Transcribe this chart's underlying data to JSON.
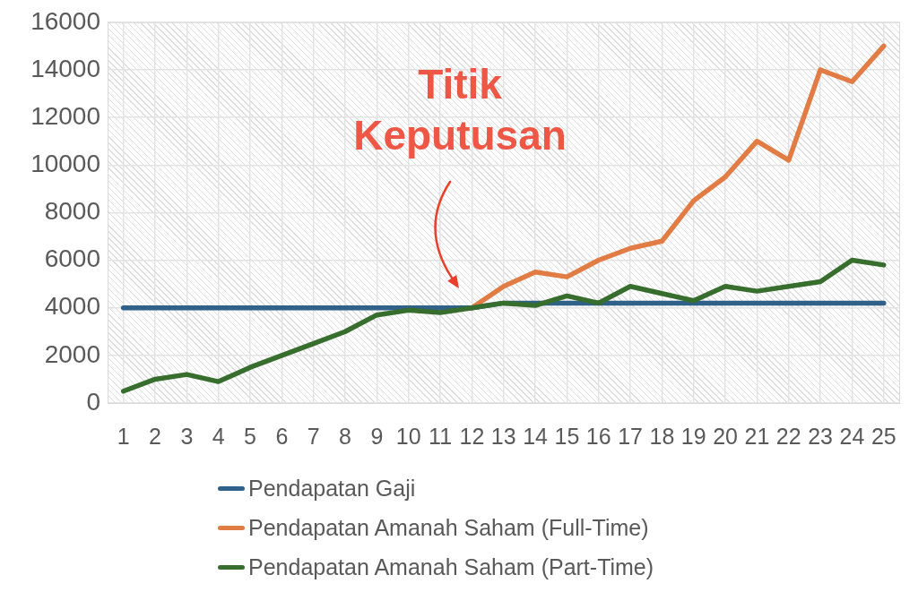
{
  "chart_data": {
    "type": "line",
    "x": [
      1,
      2,
      3,
      4,
      5,
      6,
      7,
      8,
      9,
      10,
      11,
      12,
      13,
      14,
      15,
      16,
      17,
      18,
      19,
      20,
      21,
      22,
      23,
      24,
      25
    ],
    "series": [
      {
        "name": "Pendapatan Gaji",
        "color": "#2f6189",
        "values": [
          4000,
          4000,
          4000,
          4000,
          4000,
          4000,
          4000,
          4000,
          4000,
          4000,
          4000,
          4000,
          4200,
          4200,
          4200,
          4200,
          4200,
          4200,
          4200,
          4200,
          4200,
          4200,
          4200,
          4200,
          4200
        ]
      },
      {
        "name": "Pendapatan Amanah Saham (Full-Time)",
        "color": "#e27c45",
        "values": [
          null,
          null,
          null,
          null,
          null,
          null,
          null,
          null,
          null,
          null,
          null,
          4000,
          4900,
          5500,
          5300,
          6000,
          6500,
          6800,
          8500,
          9500,
          11000,
          10200,
          14000,
          13500,
          15000
        ]
      },
      {
        "name": "Pendapatan Amanah Saham (Part-Time)",
        "color": "#376d2d",
        "values": [
          500,
          1000,
          1200,
          900,
          1500,
          2000,
          2500,
          3000,
          3700,
          3900,
          3800,
          4000,
          4200,
          4100,
          4500,
          4200,
          4900,
          4600,
          4300,
          4900,
          4700,
          4900,
          5100,
          6000,
          5800
        ]
      }
    ],
    "xlim": [
      0.5,
      25.5
    ],
    "xticks": [
      1,
      2,
      3,
      4,
      5,
      6,
      7,
      8,
      9,
      10,
      11,
      12,
      13,
      14,
      15,
      16,
      17,
      18,
      19,
      20,
      21,
      22,
      23,
      24,
      25
    ],
    "ylim": [
      0,
      16000
    ],
    "yticks": [
      0,
      2000,
      4000,
      6000,
      8000,
      10000,
      12000,
      14000,
      16000
    ],
    "grid": true,
    "legend": "bottom",
    "marker": "none",
    "line_style": "solid",
    "annotations": [
      "Titik Keputusan"
    ]
  }
}
